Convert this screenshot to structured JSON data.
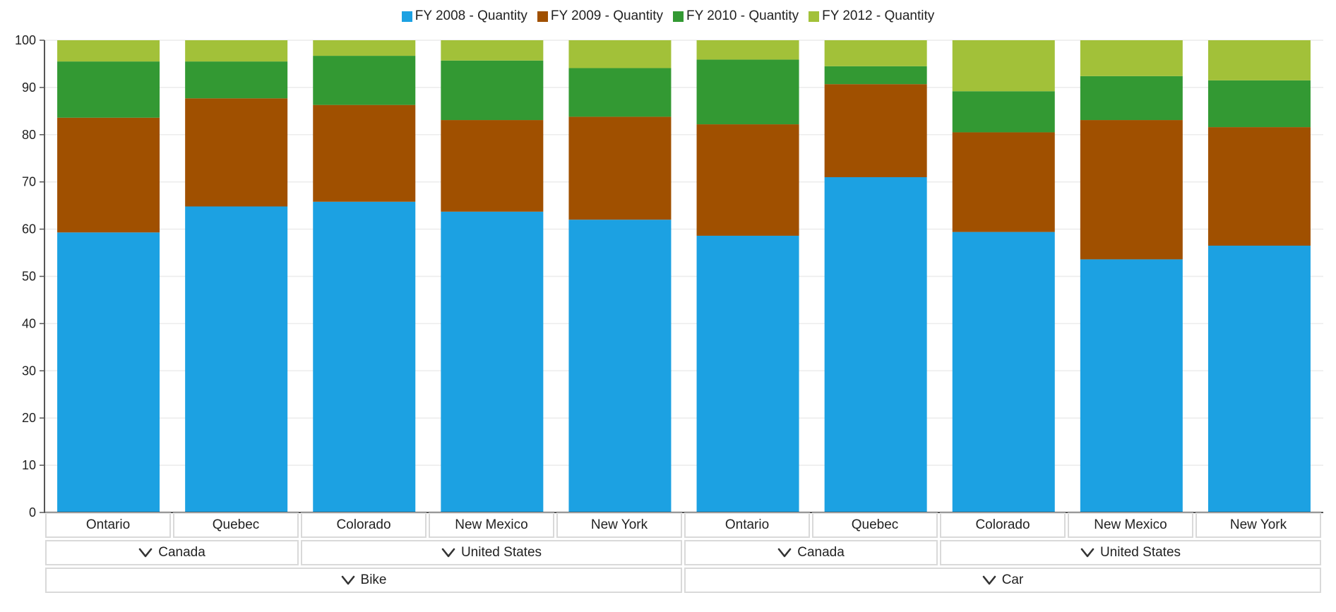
{
  "chart_data": {
    "type": "bar",
    "stacked": "percent",
    "categories": [
      "Ontario",
      "Quebec",
      "Colorado",
      "New Mexico",
      "New York",
      "Ontario",
      "Quebec",
      "Colorado",
      "New Mexico",
      "New York"
    ],
    "series": [
      {
        "name": "FY 2008 - Quantity",
        "color": "#1ca1e2",
        "values": [
          59.3,
          64.8,
          65.8,
          63.7,
          62.0,
          58.6,
          71.0,
          59.4,
          53.6,
          56.5
        ]
      },
      {
        "name": "FY 2009 - Quantity",
        "color": "#a05000",
        "values": [
          24.3,
          22.9,
          20.5,
          19.4,
          21.8,
          23.6,
          19.7,
          21.1,
          29.5,
          25.1
        ]
      },
      {
        "name": "FY 2010 - Quantity",
        "color": "#339933",
        "values": [
          11.9,
          7.8,
          10.4,
          12.6,
          10.3,
          13.7,
          3.8,
          8.7,
          9.3,
          9.9
        ]
      },
      {
        "name": "FY 2012 - Quantity",
        "color": "#a2c139",
        "values": [
          4.5,
          4.5,
          3.3,
          4.3,
          5.9,
          4.1,
          5.5,
          10.8,
          7.6,
          8.5
        ]
      }
    ],
    "ylim": [
      0,
      100
    ],
    "yticks": [
      0,
      10,
      20,
      30,
      40,
      50,
      60,
      70,
      80,
      90,
      100
    ],
    "grid": true,
    "legend_position": "top",
    "title": "",
    "xlabel": "",
    "ylabel": ""
  },
  "pivot": {
    "countries": [
      {
        "label": "Canada",
        "span": 2
      },
      {
        "label": "United States",
        "span": 3
      },
      {
        "label": "Canada",
        "span": 2
      },
      {
        "label": "United States",
        "span": 3
      }
    ],
    "products": [
      {
        "label": "Bike",
        "span": 5
      },
      {
        "label": "Car",
        "span": 5
      }
    ]
  },
  "icons": {
    "expander": "chevron-down-icon"
  }
}
